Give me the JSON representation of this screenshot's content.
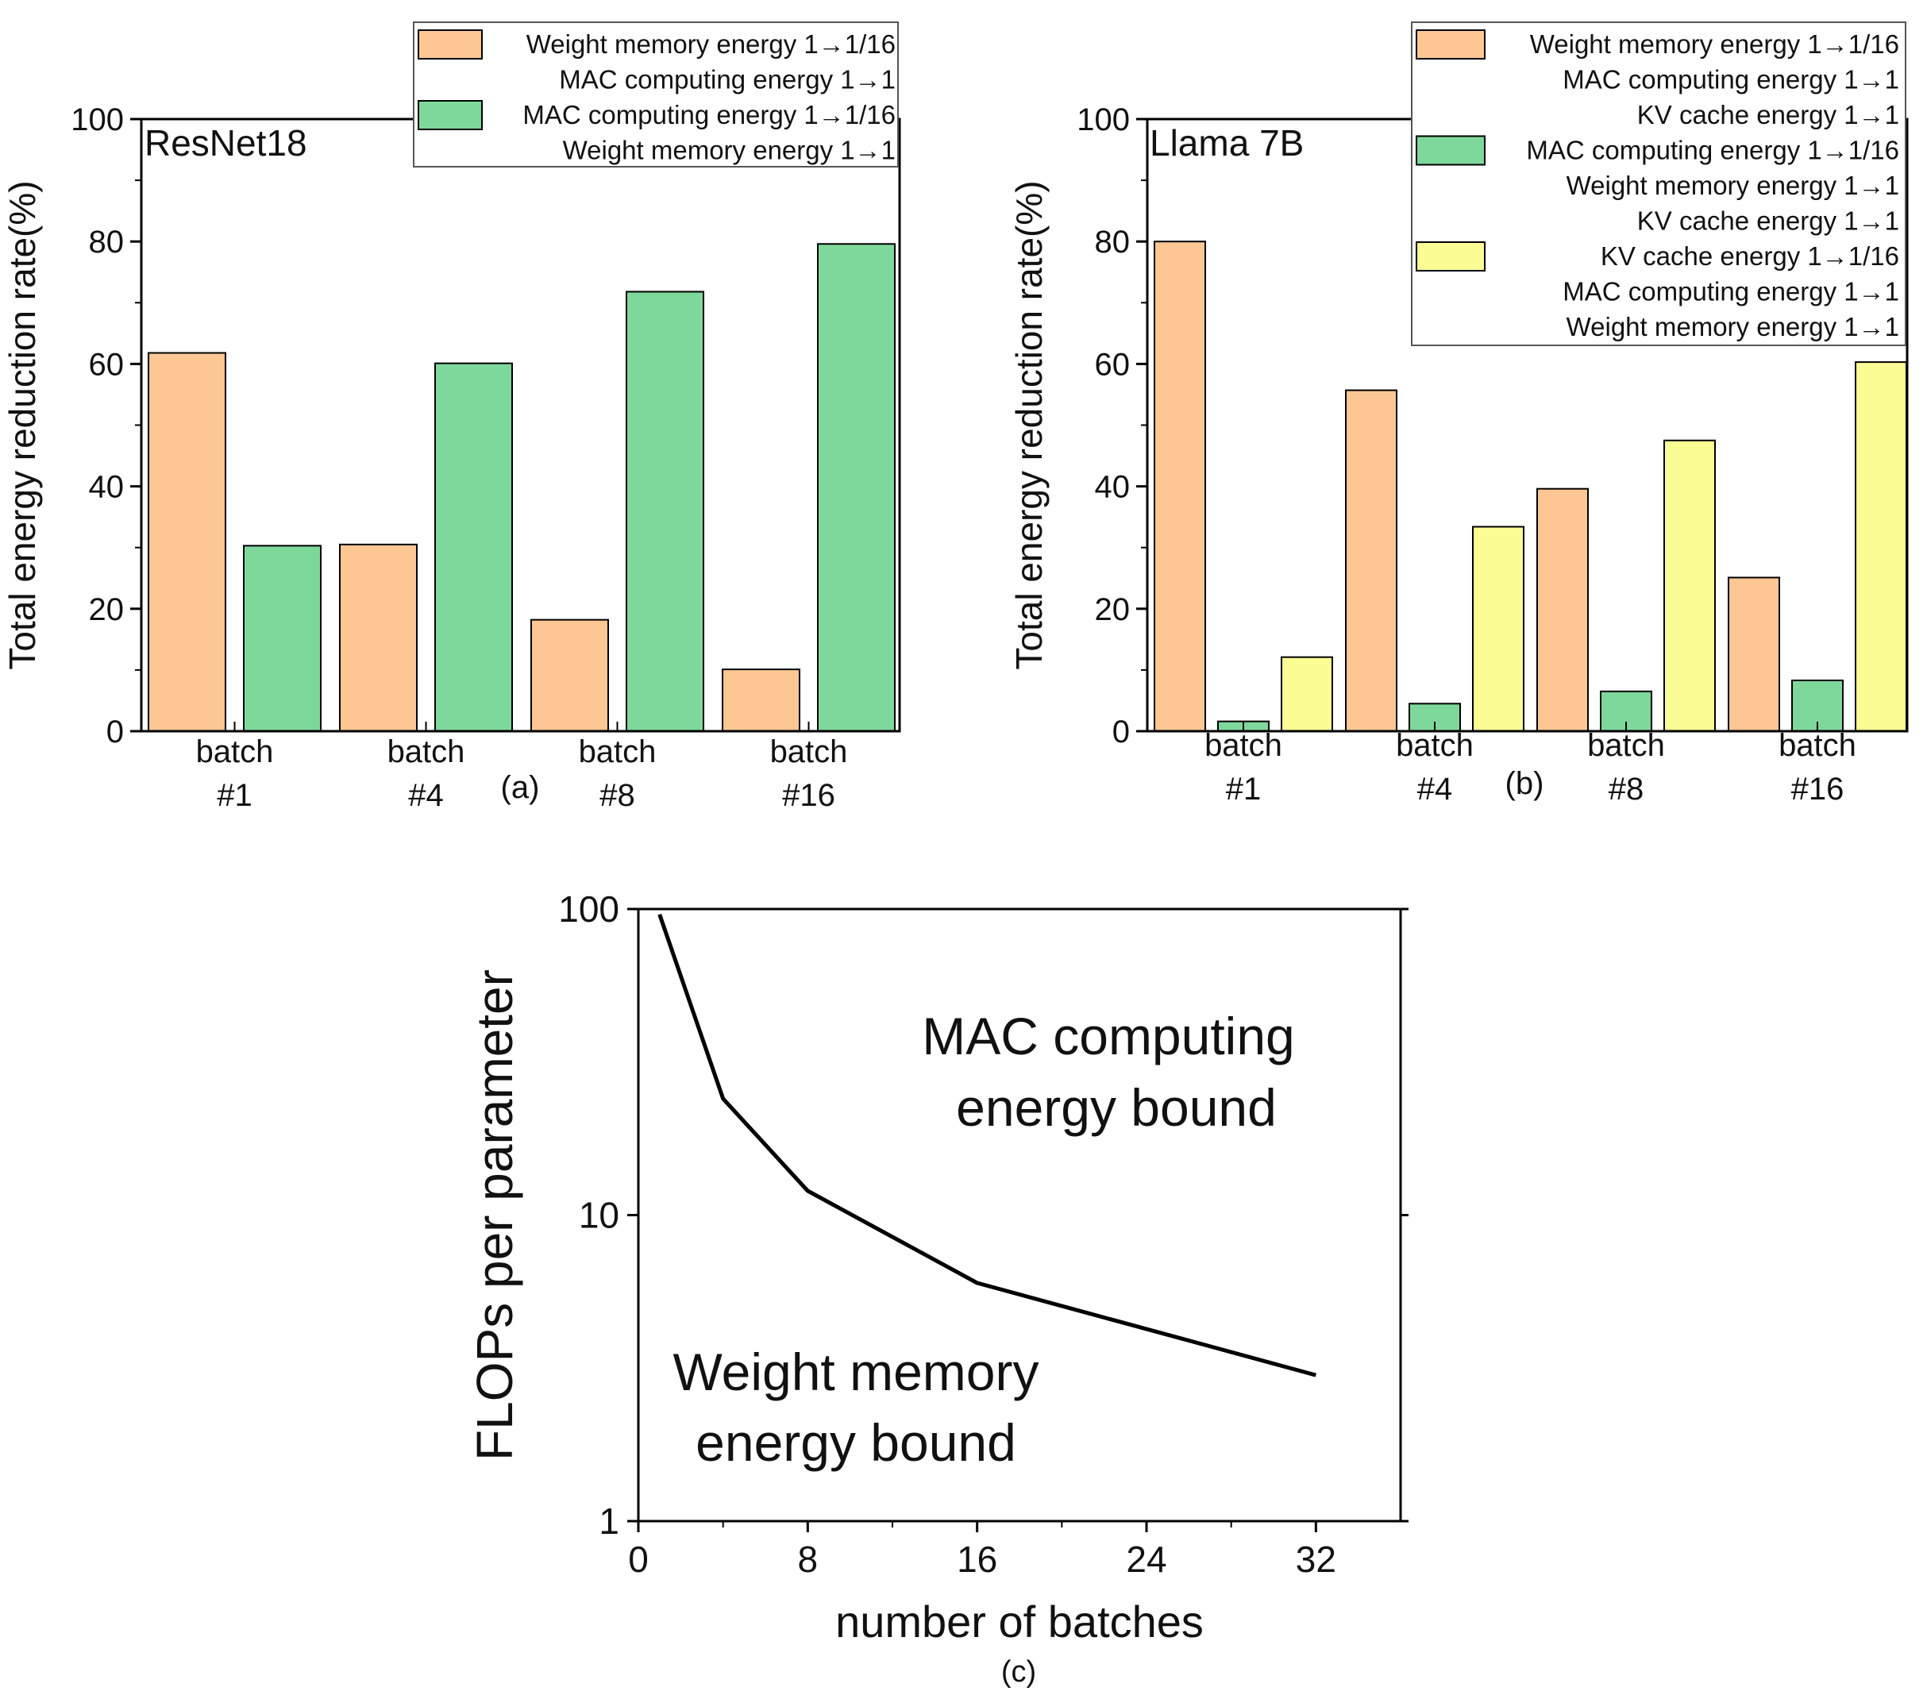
{
  "colors": {
    "weight": "#fdc794",
    "mac": "#7fd89b",
    "kv": "#fbfc94",
    "axis": "#000000",
    "legend_border": "#555555"
  },
  "chart_data": [
    {
      "id": "a",
      "type": "bar",
      "panel_label": "(a)",
      "inset_title": "ResNet18",
      "ylabel": "Total energy reduction rate(%)",
      "xlabel": "",
      "ylim": [
        0,
        100
      ],
      "yticks": [
        0,
        20,
        40,
        60,
        80,
        100
      ],
      "categories": [
        {
          "line1": "batch",
          "line2": "#1"
        },
        {
          "line1": "batch",
          "line2": "#4"
        },
        {
          "line1": "batch",
          "line2": "#8"
        },
        {
          "line1": "batch",
          "line2": "#16"
        }
      ],
      "series": [
        {
          "key": "weight",
          "color": "#fdc794",
          "values": [
            61.8,
            30.5,
            18.2,
            10.1
          ]
        },
        {
          "key": "mac",
          "color": "#7fd89b",
          "values": [
            30.3,
            60.1,
            71.8,
            79.6
          ]
        }
      ],
      "legend": {
        "placement": "top-right",
        "entries": [
          {
            "color": "#fdc794",
            "lines": [
              "Weight memory energy 1→1/16",
              "MAC computing energy 1→1"
            ]
          },
          {
            "color": "#7fd89b",
            "lines": [
              "MAC computing energy 1→1/16",
              "Weight memory energy 1→1"
            ]
          }
        ]
      }
    },
    {
      "id": "b",
      "type": "bar",
      "panel_label": "(b)",
      "inset_title": "Llama 7B",
      "ylabel": "Total energy reduction rate(%)",
      "xlabel": "",
      "ylim": [
        0,
        100
      ],
      "yticks": [
        0,
        20,
        40,
        60,
        80,
        100
      ],
      "categories": [
        {
          "line1": "batch",
          "line2": "#1"
        },
        {
          "line1": "batch",
          "line2": "#4"
        },
        {
          "line1": "batch",
          "line2": "#8"
        },
        {
          "line1": "batch",
          "line2": "#16"
        }
      ],
      "series": [
        {
          "key": "weight",
          "color": "#fdc794",
          "values": [
            80.0,
            55.7,
            39.6,
            25.1
          ]
        },
        {
          "key": "mac",
          "color": "#7fd89b",
          "values": [
            1.6,
            4.5,
            6.5,
            8.3
          ]
        },
        {
          "key": "kv",
          "color": "#fbfc94",
          "values": [
            12.1,
            33.4,
            47.5,
            60.3
          ]
        }
      ],
      "legend": {
        "placement": "top-right",
        "entries": [
          {
            "color": "#fdc794",
            "lines": [
              "Weight memory energy 1→1/16",
              "MAC computing energy 1→1",
              "KV cache energy 1→1"
            ]
          },
          {
            "color": "#7fd89b",
            "lines": [
              "MAC computing energy 1→1/16",
              "Weight memory energy 1→1",
              "KV cache energy 1→1"
            ]
          },
          {
            "color": "#fbfc94",
            "lines": [
              "KV cache energy 1→1/16",
              "MAC computing energy 1→1",
              "Weight memory energy 1→1"
            ]
          }
        ]
      }
    },
    {
      "id": "c",
      "type": "line",
      "panel_label": "(c)",
      "xlabel": "number of batches",
      "ylabel": "FLOPs per parameter",
      "xlim": [
        0,
        36
      ],
      "xticks": [
        0,
        8,
        16,
        24,
        32
      ],
      "ylim": [
        1,
        100
      ],
      "yscale": "log",
      "yticks": [
        1,
        10,
        100
      ],
      "x": [
        1,
        4,
        8,
        16,
        32
      ],
      "y": [
        96,
        24,
        12,
        6,
        3
      ],
      "annotations": [
        {
          "lines": [
            "MAC computing",
            "energy bound"
          ]
        },
        {
          "lines": [
            "Weight memory",
            "energy bound"
          ]
        }
      ]
    }
  ]
}
